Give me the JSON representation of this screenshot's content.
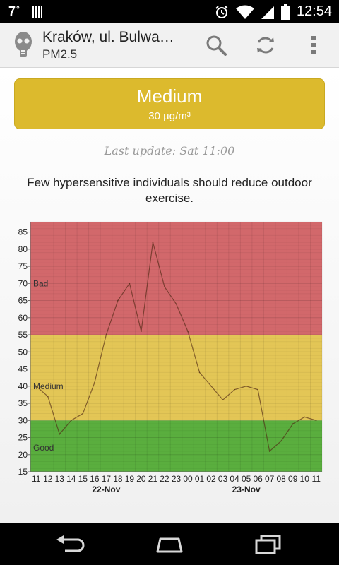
{
  "status_bar": {
    "temperature": "7",
    "degree": "°",
    "time": "12:54",
    "icons": [
      "signal-bars-icon",
      "alarm-icon",
      "wifi-icon",
      "mobile-signal-icon",
      "battery-icon"
    ]
  },
  "action_bar": {
    "title": "Kraków, ul. Bulwa…",
    "subtitle": "PM2.5",
    "icons": [
      "gas-mask-icon",
      "search-icon",
      "refresh-icon",
      "overflow-menu-icon"
    ]
  },
  "status_card": {
    "label": "Medium",
    "value": "30 µg/m³",
    "color": "#dcba2d"
  },
  "last_update": "Last update: Sat 11:00",
  "advice": "Few hypersensitive individuals should reduce outdoor exercise.",
  "chart_data": {
    "type": "line",
    "x": [
      "11",
      "12",
      "13",
      "14",
      "15",
      "16",
      "17",
      "18",
      "19",
      "20",
      "21",
      "22",
      "23",
      "00",
      "01",
      "02",
      "03",
      "04",
      "05",
      "06",
      "07",
      "08",
      "09",
      "10",
      "11"
    ],
    "date_labels": [
      {
        "label": "22-Nov",
        "index": 6
      },
      {
        "label": "23-Nov",
        "index": 18
      }
    ],
    "series": [
      {
        "values": [
          40,
          37,
          26,
          30,
          32,
          41,
          55,
          65,
          70,
          56,
          82,
          69,
          64,
          56,
          44,
          40,
          36,
          39,
          40,
          39,
          21,
          24,
          29,
          31,
          30
        ]
      }
    ],
    "ylim": [
      15,
      88
    ],
    "yticks": [
      15,
      20,
      25,
      30,
      35,
      40,
      45,
      50,
      55,
      60,
      65,
      70,
      75,
      80,
      85
    ],
    "bands": [
      {
        "label": "Good",
        "from": 15,
        "to": 30,
        "color": "#5aae3e"
      },
      {
        "label": "Medium",
        "from": 30,
        "to": 55,
        "color": "#e3c656"
      },
      {
        "label": "Bad",
        "from": 55,
        "to": 88,
        "color": "#d2686b"
      }
    ],
    "grid": true
  },
  "nav_bar": {
    "icons": [
      "back-icon",
      "home-icon",
      "recent-apps-icon"
    ]
  }
}
